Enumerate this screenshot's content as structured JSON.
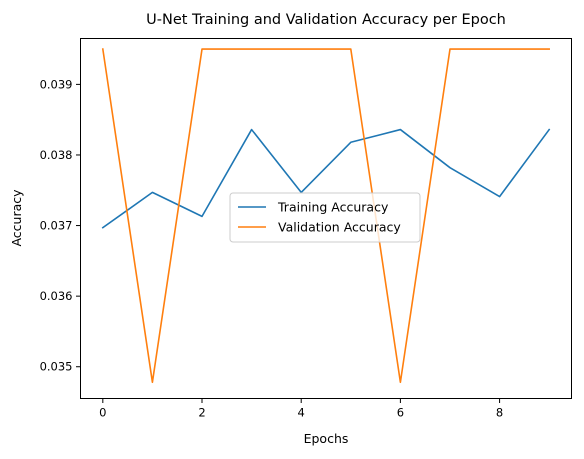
{
  "chart_data": {
    "type": "line",
    "title": "U-Net Training and Validation Accuracy per Epoch",
    "xlabel": "Epochs",
    "ylabel": "Accuracy",
    "x": [
      0,
      1,
      2,
      3,
      4,
      5,
      6,
      7,
      8,
      9
    ],
    "xlim": [
      -0.45,
      9.45
    ],
    "ylim": [
      0.03455,
      0.03965
    ],
    "xticks": [
      0,
      2,
      4,
      6,
      8
    ],
    "xtick_labels": [
      "0",
      "2",
      "4",
      "6",
      "8"
    ],
    "yticks": [
      0.035,
      0.036,
      0.037,
      0.038,
      0.039
    ],
    "ytick_labels": [
      "0.035",
      "0.036",
      "0.037",
      "0.038",
      "0.039"
    ],
    "grid": false,
    "legend_position": "center-right",
    "series": [
      {
        "name": "Training Accuracy",
        "color": "#1f77b4",
        "values": [
          0.03697,
          0.03747,
          0.03713,
          0.03836,
          0.03747,
          0.03818,
          0.03836,
          0.03782,
          0.03741,
          0.03836
        ]
      },
      {
        "name": "Validation Accuracy",
        "color": "#ff7f0e",
        "values": [
          0.0395,
          0.03478,
          0.0395,
          0.0395,
          0.0395,
          0.0395,
          0.03478,
          0.0395,
          0.0395,
          0.0395
        ]
      }
    ]
  }
}
